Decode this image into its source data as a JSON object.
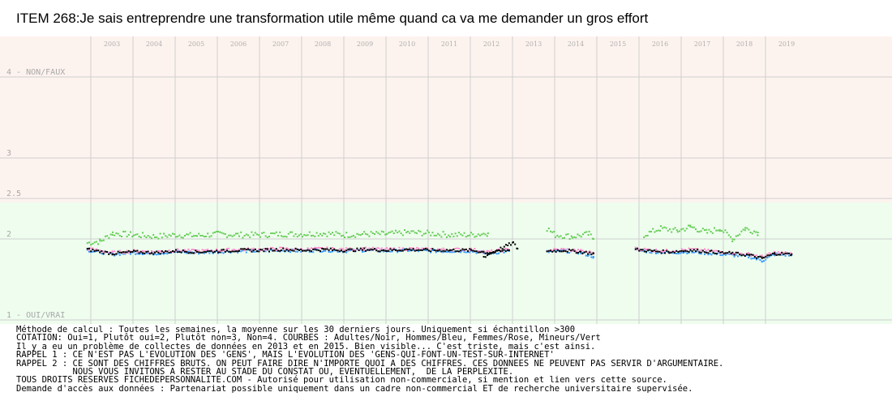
{
  "title": "ITEM 268:Je sais entreprendre une transformation utile même quand ca va me demander un gros effort",
  "colors": {
    "background_upper": "#fdf3ee",
    "background_lower": "#eefdee",
    "grid": "#cfcfcf",
    "adultes": "#000000",
    "hommes": "#3399ff",
    "femmes": "#ff88cc",
    "mineurs": "#66cc55"
  },
  "chart_data": {
    "type": "scatter",
    "title": "ITEM 268:Je sais entreprendre une transformation utile même quand ca va me demander un gros effort",
    "x_tick_labels": [
      "2003",
      "2004",
      "2005",
      "2006",
      "2007",
      "2008",
      "2009",
      "2010",
      "2011",
      "2012",
      "2013",
      "2014",
      "2015",
      "2016",
      "2017",
      "2018",
      "2019"
    ],
    "y_tick_labels": [
      {
        "value": 4,
        "label": "4 - NON/FAUX"
      },
      {
        "value": 3,
        "label": "3"
      },
      {
        "value": 2.5,
        "label": "2.5"
      },
      {
        "value": 2,
        "label": "2"
      },
      {
        "value": 1,
        "label": "1 - OUI/VRAI"
      }
    ],
    "ylim": [
      1,
      4
    ],
    "xlim": [
      2002.5,
      2020.0
    ],
    "grid": true,
    "background_split_at": 2.5,
    "series": [
      {
        "name": "Adultes",
        "color": "#000000",
        "segments": [
          {
            "x": [
              2002.9,
              2003.5,
              2004.0,
              2004.5,
              2005.0,
              2005.5,
              2006.0,
              2006.5,
              2007.0,
              2007.5,
              2008.0,
              2008.5,
              2009.0,
              2009.5,
              2010.0,
              2010.5,
              2011.0,
              2011.5,
              2012.0,
              2012.4,
              2012.9
            ],
            "y": [
              1.87,
              1.82,
              1.84,
              1.83,
              1.85,
              1.84,
              1.85,
              1.86,
              1.86,
              1.87,
              1.86,
              1.87,
              1.86,
              1.87,
              1.86,
              1.87,
              1.86,
              1.86,
              1.86,
              1.83,
              1.86
            ]
          },
          {
            "x": [
              2012.3,
              2012.5,
              2012.7,
              2012.9,
              2013.0,
              2013.1
            ],
            "y": [
              1.78,
              1.83,
              1.88,
              1.93,
              1.95,
              1.88
            ]
          },
          {
            "x": [
              2013.8,
              2014.2,
              2014.6,
              2014.9
            ],
            "y": [
              1.85,
              1.86,
              1.84,
              1.82
            ]
          },
          {
            "x": [
              2015.9,
              2016.3,
              2016.7,
              2017.2,
              2017.7,
              2018.2,
              2018.6,
              2018.9,
              2019.2,
              2019.6
            ],
            "y": [
              1.87,
              1.85,
              1.84,
              1.86,
              1.84,
              1.82,
              1.8,
              1.76,
              1.82,
              1.81
            ]
          }
        ]
      },
      {
        "name": "Hommes",
        "color": "#3399ff",
        "segments": [
          {
            "x": [
              2002.9,
              2003.5,
              2004.0,
              2004.5,
              2005.0,
              2005.5,
              2006.0,
              2006.5,
              2007.0,
              2007.5,
              2008.0,
              2008.5,
              2009.0,
              2009.5,
              2010.0,
              2010.5,
              2011.0,
              2011.5,
              2012.0,
              2012.4,
              2012.9
            ],
            "y": [
              1.86,
              1.81,
              1.83,
              1.82,
              1.84,
              1.83,
              1.84,
              1.85,
              1.85,
              1.86,
              1.85,
              1.86,
              1.85,
              1.86,
              1.85,
              1.86,
              1.85,
              1.85,
              1.85,
              1.82,
              1.85
            ]
          },
          {
            "x": [
              2013.8,
              2014.2,
              2014.6,
              2014.9
            ],
            "y": [
              1.84,
              1.85,
              1.83,
              1.78
            ]
          },
          {
            "x": [
              2015.9,
              2016.3,
              2016.7,
              2017.2,
              2017.7,
              2018.2,
              2018.6,
              2018.9,
              2019.2,
              2019.6
            ],
            "y": [
              1.86,
              1.84,
              1.83,
              1.84,
              1.82,
              1.8,
              1.78,
              1.73,
              1.81,
              1.8
            ]
          }
        ]
      },
      {
        "name": "Femmes",
        "color": "#ff88cc",
        "segments": [
          {
            "x": [
              2002.9,
              2003.5,
              2004.0,
              2004.5,
              2005.0,
              2005.5,
              2006.0,
              2006.5,
              2007.0,
              2007.5,
              2008.0,
              2008.5,
              2009.0,
              2009.5,
              2010.0,
              2010.5,
              2011.0,
              2011.5,
              2012.0,
              2012.4,
              2012.9
            ],
            "y": [
              1.88,
              1.83,
              1.85,
              1.84,
              1.86,
              1.85,
              1.86,
              1.87,
              1.87,
              1.88,
              1.87,
              1.88,
              1.87,
              1.88,
              1.87,
              1.88,
              1.87,
              1.87,
              1.87,
              1.84,
              1.87
            ]
          },
          {
            "x": [
              2013.8,
              2014.2,
              2014.6,
              2014.9
            ],
            "y": [
              1.86,
              1.87,
              1.85,
              1.83
            ]
          },
          {
            "x": [
              2015.9,
              2016.3,
              2016.7,
              2017.2,
              2017.7,
              2018.2,
              2018.6,
              2018.9,
              2019.2,
              2019.6
            ],
            "y": [
              1.88,
              1.86,
              1.85,
              1.87,
              1.85,
              1.83,
              1.81,
              1.78,
              1.83,
              1.82
            ]
          }
        ]
      },
      {
        "name": "Mineurs",
        "color": "#66cc55",
        "segments": [
          {
            "x": [
              2002.9,
              2003.2,
              2003.5,
              2004.0,
              2004.5,
              2005.0,
              2005.5,
              2006.0,
              2006.5,
              2007.0,
              2007.5,
              2008.0,
              2008.5,
              2009.0,
              2009.5,
              2010.0,
              2010.5,
              2011.0,
              2011.5,
              2012.0,
              2012.4
            ],
            "y": [
              1.95,
              1.97,
              2.07,
              2.05,
              2.03,
              2.05,
              2.04,
              2.06,
              2.05,
              2.05,
              2.06,
              2.06,
              2.07,
              2.05,
              2.06,
              2.06,
              2.08,
              2.07,
              2.05,
              2.05,
              2.07
            ]
          },
          {
            "x": [
              2013.8,
              2014.0,
              2014.4,
              2014.8,
              2014.9
            ],
            "y": [
              2.13,
              2.05,
              2.03,
              2.06,
              2.0
            ]
          },
          {
            "x": [
              2016.1,
              2016.5,
              2016.9,
              2017.2,
              2017.6,
              2017.9,
              2018.2,
              2018.5,
              2018.8
            ],
            "y": [
              2.05,
              2.13,
              2.1,
              2.15,
              2.08,
              2.13,
              2.0,
              2.13,
              2.08
            ]
          }
        ]
      }
    ]
  },
  "notes": [
    "Méthode de calcul : Toutes les semaines, la moyenne sur les 30 derniers jours. Uniquement si échantillon >300",
    "COTATION: Oui=1, Plutôt oui=2, Plutôt non=3, Non=4. COURBES : Adultes/Noir, Hommes/Bleu, Femmes/Rose, Mineurs/Vert",
    "Il y a eu un problème de collectes de données en 2013 et en 2015. Bien visible... C'est triste, mais c'est ainsi.",
    "RAPPEL 1 : CE N'EST PAS L'EVOLUTION DES 'GENS', MAIS L'EVOLUTION DES 'GENS-QUI-FONT-UN-TEST-SUR-INTERNET'",
    "RAPPEL 2 : CE SONT DES CHIFFRES BRUTS. ON PEUT FAIRE DIRE N'IMPORTE QUOI A DES CHIFFRES. CES DONNEES NE PEUVENT PAS SERVIR D'ARGUMENTAIRE.",
    "           NOUS VOUS INVITONS A RESTER AU STADE DU CONSTAT OU, EVENTUELLEMENT,  DE LA PERPLEXITE.",
    "TOUS DROITS RESERVES FICHEDEPERSONNALITE.COM - Autorisé pour utilisation non-commerciale, si mention et lien vers cette source.",
    "Demande d'accès aux données : Partenariat possible uniquement dans un cadre non-commercial ET de recherche universitaire supervisée."
  ]
}
